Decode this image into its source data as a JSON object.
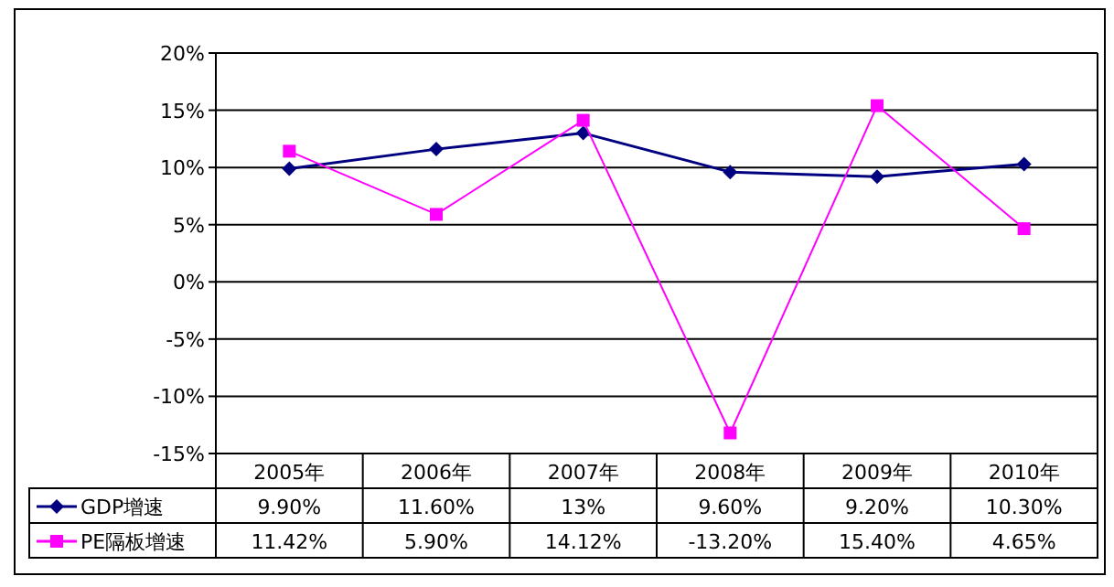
{
  "chart_data": {
    "type": "line",
    "categories": [
      "2005年",
      "2006年",
      "2007年",
      "2008年",
      "2009年",
      "2010年"
    ],
    "series": [
      {
        "name": "GDP增速",
        "color": "#000080",
        "marker": "diamond",
        "values": [
          9.9,
          11.6,
          13,
          9.6,
          9.2,
          10.3
        ],
        "value_labels": [
          "9.90%",
          "11.60%",
          "13%",
          "9.60%",
          "9.20%",
          "10.30%"
        ]
      },
      {
        "name": "PE隔板增速",
        "color": "#ff00ff",
        "marker": "square",
        "values": [
          11.42,
          5.9,
          14.12,
          -13.2,
          15.4,
          4.65
        ],
        "value_labels": [
          "11.42%",
          "5.90%",
          "14.12%",
          "-13.20%",
          "15.40%",
          "4.65%"
        ]
      }
    ],
    "ylim": [
      -15,
      20
    ],
    "yticks": [
      {
        "value": -15,
        "label": "-15%"
      },
      {
        "value": -10,
        "label": "-10%"
      },
      {
        "value": -5,
        "label": "-5%"
      },
      {
        "value": 0,
        "label": "0%"
      },
      {
        "value": 5,
        "label": "5%"
      },
      {
        "value": 10,
        "label": "10%"
      },
      {
        "value": 15,
        "label": "15%"
      },
      {
        "value": 20,
        "label": "20%"
      }
    ],
    "grid": "y",
    "legend": "bottom"
  }
}
